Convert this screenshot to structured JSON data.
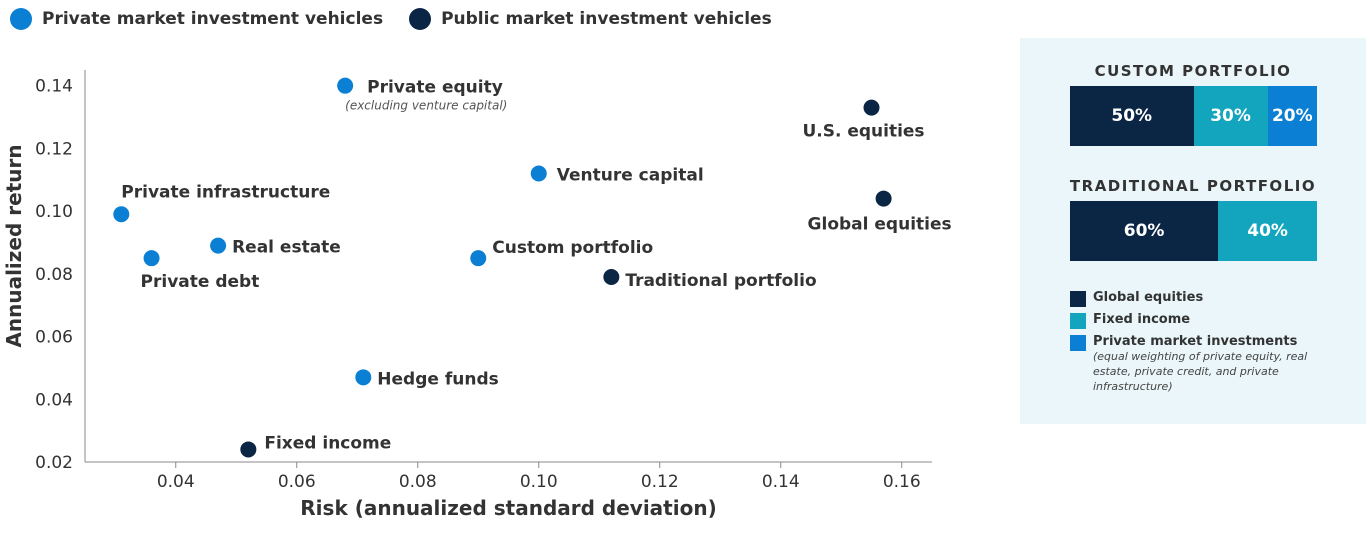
{
  "legend": [
    {
      "label": "Private market investment vehicles",
      "color": "#0a7fd3"
    },
    {
      "label": "Public market investment vehicles",
      "color": "#0b2545"
    }
  ],
  "chart_data": {
    "type": "scatter",
    "xlabel": "Risk (annualized standard deviation)",
    "ylabel": "Annualized return",
    "xlim": [
      0.025,
      0.165
    ],
    "ylim": [
      0.02,
      0.145
    ],
    "x_ticks": [
      "0.04",
      "0.06",
      "0.08",
      "0.10",
      "0.12",
      "0.14",
      "0.16"
    ],
    "y_ticks": [
      "0.02",
      "0.04",
      "0.06",
      "0.08",
      "0.10",
      "0.12",
      "0.14"
    ],
    "series": [
      {
        "name": "Private market investment vehicles",
        "color": "#0a7fd3",
        "points": [
          {
            "label": "Private equity",
            "sublabel": "(excluding venture capital)",
            "x": 0.068,
            "y": 0.14
          },
          {
            "label": "Venture capital",
            "x": 0.1,
            "y": 0.112
          },
          {
            "label": "Private infrastructure",
            "x": 0.031,
            "y": 0.099
          },
          {
            "label": "Real estate",
            "x": 0.047,
            "y": 0.089
          },
          {
            "label": "Private debt",
            "x": 0.036,
            "y": 0.085
          },
          {
            "label": "Custom portfolio",
            "x": 0.09,
            "y": 0.085
          },
          {
            "label": "Hedge funds",
            "x": 0.071,
            "y": 0.047
          }
        ]
      },
      {
        "name": "Public market investment vehicles",
        "color": "#0b2545",
        "points": [
          {
            "label": "U.S. equities",
            "x": 0.155,
            "y": 0.133
          },
          {
            "label": "Global equities",
            "x": 0.157,
            "y": 0.104
          },
          {
            "label": "Traditional portfolio",
            "x": 0.112,
            "y": 0.079
          },
          {
            "label": "Fixed income",
            "x": 0.052,
            "y": 0.024
          }
        ]
      }
    ]
  },
  "panel": {
    "custom": {
      "title": "CUSTOM PORTFOLIO",
      "segments": [
        {
          "label": "50%",
          "value": 50,
          "color": "#0b2545"
        },
        {
          "label": "30%",
          "value": 30,
          "color": "#12a5bd"
        },
        {
          "label": "20%",
          "value": 20,
          "color": "#0a7fd3"
        }
      ]
    },
    "traditional": {
      "title": "TRADITIONAL PORTFOLIO",
      "segments": [
        {
          "label": "60%",
          "value": 60,
          "color": "#0b2545"
        },
        {
          "label": "40%",
          "value": 40,
          "color": "#12a5bd"
        }
      ]
    },
    "legend": [
      {
        "label": "Global equities",
        "color": "#0b2545"
      },
      {
        "label": "Fixed income",
        "color": "#12a5bd"
      },
      {
        "label": "Private market investments",
        "color": "#0a7fd3",
        "note": "(equal weighting of private equity, real estate, private credit, and private infrastructure)"
      }
    ]
  }
}
